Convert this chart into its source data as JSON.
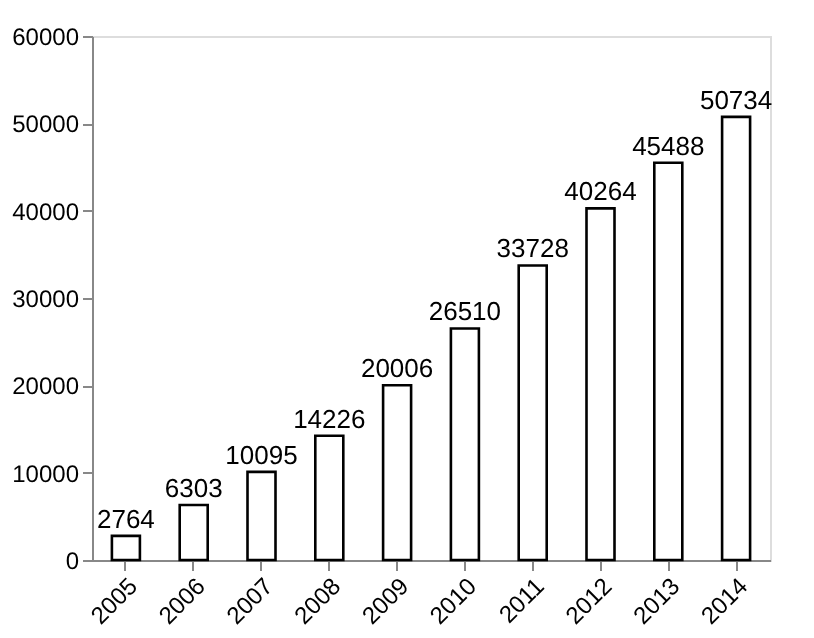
{
  "chart_data": {
    "type": "bar",
    "categories": [
      "2005",
      "2006",
      "2007",
      "2008",
      "2009",
      "2010",
      "2011",
      "2012",
      "2013",
      "2014"
    ],
    "values": [
      2764,
      6303,
      10095,
      14226,
      20006,
      26510,
      33728,
      40264,
      45488,
      50734
    ],
    "color": "#ffffff",
    "ylim": [
      0,
      60000
    ],
    "yticks": [
      0,
      10000,
      20000,
      30000,
      40000,
      50000,
      60000
    ],
    "grid": false,
    "data_labels": true
  }
}
